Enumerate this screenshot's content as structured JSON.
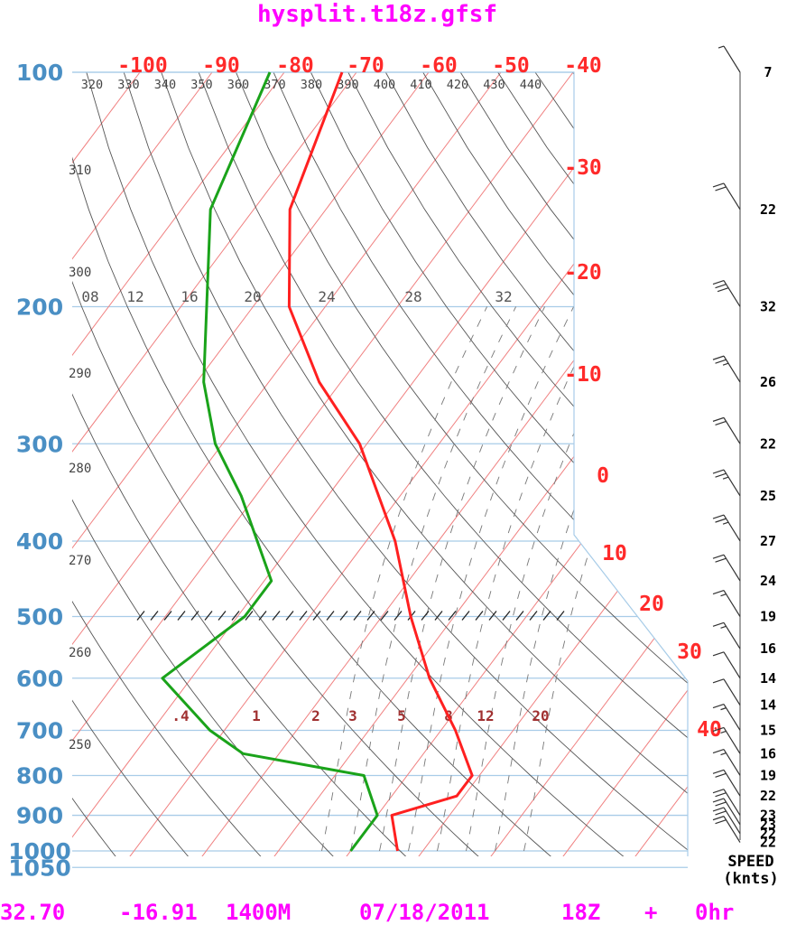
{
  "title": "hysplit.t18z.gfsf",
  "footer": {
    "lat": "32.70",
    "lon": "-16.91",
    "elev": "1400M",
    "date": "07/18/2011",
    "hour": "18Z",
    "plus": "+",
    "fcst": "0hr"
  },
  "speed_label": "SPEED",
  "speed_unit": "(knts)",
  "colors": {
    "title": "#ff00ff",
    "pressure_labels": "#4a8fc4",
    "temperature": "#ff2020",
    "temperature_labels": "#ff2a2a",
    "dewpoint": "#1aa31a",
    "isotherms": "#f08080",
    "dry_adiabats": "#555555",
    "isobars": "#a8cce8",
    "mixing_ratio_labels": "#a03030"
  },
  "chart_data": {
    "type": "skew-t log-p",
    "pressure_levels": [
      "100",
      "200",
      "300",
      "400",
      "500",
      "600",
      "700",
      "800",
      "900",
      "1000",
      "1050"
    ],
    "temperature_labels": [
      "-100",
      "-90",
      "-80",
      "-70",
      "-60",
      "-50",
      "-40",
      "-30",
      "-20",
      "-10",
      "0",
      "10",
      "20",
      "30",
      "40"
    ],
    "theta_labels_top": [
      "320",
      "330",
      "340",
      "350",
      "360",
      "370",
      "380",
      "390",
      "400",
      "410",
      "420",
      "430",
      "440"
    ],
    "theta_labels_left": [
      "310",
      "300",
      "290",
      "280",
      "270",
      "260",
      "250"
    ],
    "mixing_ratio_labels_upper": [
      "08",
      "12",
      "16",
      "20",
      "24",
      "28",
      "32"
    ],
    "mixing_ratio_labels_lower": [
      ".4",
      "1",
      "2",
      "3",
      "5",
      "8",
      "12",
      "20"
    ],
    "temperature_profile": [
      {
        "p": 1000,
        "t": 16.5
      },
      {
        "p": 900,
        "t": 12.0
      },
      {
        "p": 850,
        "t": 19.0
      },
      {
        "p": 800,
        "t": 19.0
      },
      {
        "p": 700,
        "t": 12.0
      },
      {
        "p": 600,
        "t": 3.0
      },
      {
        "p": 500,
        "t": -6.0
      },
      {
        "p": 400,
        "t": -16.0
      },
      {
        "p": 300,
        "t": -31.0
      },
      {
        "p": 250,
        "t": -43.0
      },
      {
        "p": 200,
        "t": -55.0
      },
      {
        "p": 150,
        "t": -65.0
      },
      {
        "p": 100,
        "t": -72.0
      }
    ],
    "dewpoint_profile": [
      {
        "p": 1000,
        "td": 10.0
      },
      {
        "p": 900,
        "td": 10.0
      },
      {
        "p": 800,
        "td": 4.0
      },
      {
        "p": 750,
        "td": -15.0
      },
      {
        "p": 700,
        "td": -22.0
      },
      {
        "p": 600,
        "td": -34.0
      },
      {
        "p": 500,
        "td": -29.0
      },
      {
        "p": 450,
        "td": -29.0
      },
      {
        "p": 350,
        "td": -42.0
      },
      {
        "p": 300,
        "td": -51.0
      },
      {
        "p": 250,
        "td": -59.0
      },
      {
        "p": 150,
        "td": -76.0
      },
      {
        "p": 100,
        "td": -82.0
      }
    ],
    "wind_speed_labels": [
      {
        "p": 100,
        "speed": "7"
      },
      {
        "p": 150,
        "speed": "22"
      },
      {
        "p": 200,
        "speed": "32"
      },
      {
        "p": 250,
        "speed": "26"
      },
      {
        "p": 300,
        "speed": "22"
      },
      {
        "p": 350,
        "speed": "25"
      },
      {
        "p": 400,
        "speed": "27"
      },
      {
        "p": 450,
        "speed": "24"
      },
      {
        "p": 500,
        "speed": "19"
      },
      {
        "p": 550,
        "speed": "16"
      },
      {
        "p": 600,
        "speed": "14"
      },
      {
        "p": 650,
        "speed": "14"
      },
      {
        "p": 700,
        "speed": "15"
      },
      {
        "p": 750,
        "speed": "16"
      },
      {
        "p": 800,
        "speed": "19"
      },
      {
        "p": 850,
        "speed": "22"
      },
      {
        "p": 900,
        "speed": "23"
      },
      {
        "p": 925,
        "speed": "23"
      },
      {
        "p": 950,
        "speed": "22"
      },
      {
        "p": 975,
        "speed": "22"
      }
    ]
  }
}
